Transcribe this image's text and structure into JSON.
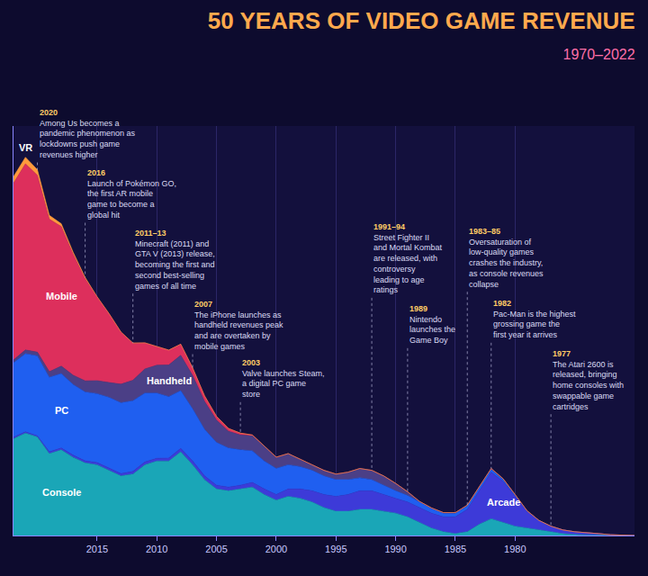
{
  "chart_data": {
    "type": "area",
    "title": "50 YEARS OF VIDEO GAME REVENUE",
    "subtitle": "1970–2022",
    "x": [
      1970,
      1971,
      1972,
      1973,
      1974,
      1975,
      1976,
      1977,
      1978,
      1979,
      1980,
      1981,
      1982,
      1983,
      1984,
      1985,
      1986,
      1987,
      1988,
      1989,
      1990,
      1991,
      1992,
      1993,
      1994,
      1995,
      1996,
      1997,
      1998,
      1999,
      2000,
      2001,
      2002,
      2003,
      2004,
      2005,
      2006,
      2007,
      2008,
      2009,
      2010,
      2011,
      2012,
      2013,
      2014,
      2015,
      2016,
      2017,
      2018,
      2019,
      2020,
      2021,
      2022
    ],
    "xlim": [
      1970,
      2022
    ],
    "xticks": [
      1980,
      1985,
      1990,
      1995,
      2000,
      2005,
      2010,
      2015
    ],
    "ylim": [
      0,
      220
    ],
    "stacked": true,
    "grid": true,
    "tick_labels": "x",
    "series": [
      {
        "name": "Console",
        "color": "#1aa6b7",
        "values": [
          0,
          0,
          0.1,
          0.2,
          0.3,
          0.5,
          1,
          2,
          3,
          4,
          5,
          7,
          9,
          6,
          2,
          1,
          2,
          4,
          7,
          10,
          12,
          13,
          14,
          14,
          13,
          13,
          15,
          18,
          20,
          21,
          19,
          22,
          26,
          25,
          24,
          25,
          30,
          38,
          45,
          40,
          40,
          38,
          33,
          32,
          35,
          38,
          39,
          42,
          46,
          44,
          53,
          55,
          52
        ]
      },
      {
        "name": "Arcade",
        "color": "#3d3ad8",
        "values": [
          0,
          0.1,
          0.3,
          0.8,
          1.2,
          1.5,
          2,
          3,
          5,
          9,
          16,
          22,
          25,
          18,
          12,
          9,
          8,
          8,
          8,
          8,
          8,
          9,
          10,
          10,
          9,
          8,
          7,
          6,
          5,
          4,
          3,
          3,
          2.5,
          2,
          2,
          2,
          2,
          2,
          1.8,
          1.6,
          1.5,
          1.5,
          1.4,
          1.3,
          1.2,
          1.2,
          1.1,
          1.1,
          1,
          1,
          0.5,
          0.7,
          0.8
        ]
      },
      {
        "name": "PC",
        "color": "#1f5ff0",
        "values": [
          0,
          0,
          0,
          0,
          0,
          0,
          0,
          0,
          0.1,
          0.2,
          0.5,
          1,
          1.5,
          2,
          2,
          2,
          2,
          2.5,
          3,
          3.5,
          4,
          5,
          6,
          7,
          8,
          9,
          10,
          11,
          12,
          13,
          14,
          15,
          17,
          19,
          21,
          23,
          25,
          28,
          31,
          33,
          35,
          37,
          38,
          38,
          38,
          37,
          37,
          38,
          40,
          40,
          43,
          42,
          40
        ]
      },
      {
        "name": "Handheld",
        "color": "#4b3f86",
        "values": [
          0,
          0,
          0,
          0,
          0,
          0,
          0,
          0,
          0,
          0.1,
          0.5,
          0.5,
          0.5,
          0.4,
          0.3,
          0.3,
          0.3,
          0.3,
          0.3,
          2,
          4,
          5,
          5,
          5,
          4,
          3,
          3,
          3,
          4,
          6,
          6,
          8,
          8,
          8,
          9,
          12,
          15,
          18,
          19,
          17,
          15,
          13,
          11,
          10,
          8,
          7,
          6,
          5,
          4,
          3,
          2,
          2,
          1.5
        ]
      },
      {
        "name": "Mobile",
        "color": "#dd2f5c",
        "values": [
          0,
          0,
          0,
          0,
          0,
          0,
          0,
          0,
          0,
          0,
          0,
          0,
          0,
          0,
          0,
          0,
          0,
          0,
          0,
          0,
          0,
          0,
          0,
          0,
          0,
          0,
          0,
          0,
          0,
          0,
          0.1,
          0.3,
          0.5,
          1,
          1.5,
          2,
          3,
          4,
          6,
          8,
          10,
          14,
          20,
          28,
          37,
          45,
          55,
          65,
          75,
          82,
          95,
          100,
          95
        ]
      },
      {
        "name": "VR",
        "color": "#ff9a3c",
        "values": [
          0,
          0,
          0,
          0,
          0,
          0,
          0,
          0,
          0,
          0,
          0,
          0,
          0,
          0,
          0,
          0,
          0,
          0,
          0,
          0,
          0,
          0,
          0,
          0,
          0,
          0,
          0,
          0,
          0,
          0,
          0,
          0,
          0,
          0,
          0,
          0,
          0,
          0,
          0,
          0,
          0,
          0,
          0,
          0,
          0,
          0.1,
          0.5,
          1,
          1.5,
          2,
          3,
          3.5,
          3.5
        ]
      }
    ],
    "annotations": [
      {
        "label": "2020",
        "year": 2020,
        "text": "Among Us becomes a pandemic phenomenon as lockdowns push game revenues higher"
      },
      {
        "label": "2016",
        "year": 2016,
        "text": "Launch of Pokémon GO, the first AR mobile game to become a global hit"
      },
      {
        "label": "2011–13",
        "year": 2012,
        "text": "Minecraft (2011) and GTA V (2013) release, becoming the first and second best-selling games of all time"
      },
      {
        "label": "2007",
        "year": 2007,
        "text": "The iPhone launches as handheld revenues peak and are overtaken by mobile games"
      },
      {
        "label": "2003",
        "year": 2003,
        "text": "Valve launches Steam, a digital PC game store"
      },
      {
        "label": "1991–94",
        "year": 1992,
        "text": "Street Fighter II and Mortal Kombat are released, with controversy leading to age ratings"
      },
      {
        "label": "1989",
        "year": 1989,
        "text": "Nintendo launches the Game Boy"
      },
      {
        "label": "1983–85",
        "year": 1984,
        "text": "Oversaturation of low-quality games crashes the industry, as console revenues collapse"
      },
      {
        "label": "1982",
        "year": 1982,
        "text": "Pac-Man is the highest grossing game the first year it arrives"
      },
      {
        "label": "1977",
        "year": 1977,
        "text": "The Atari 2600 is released, bringing home consoles with swappable game cartridges"
      }
    ]
  }
}
